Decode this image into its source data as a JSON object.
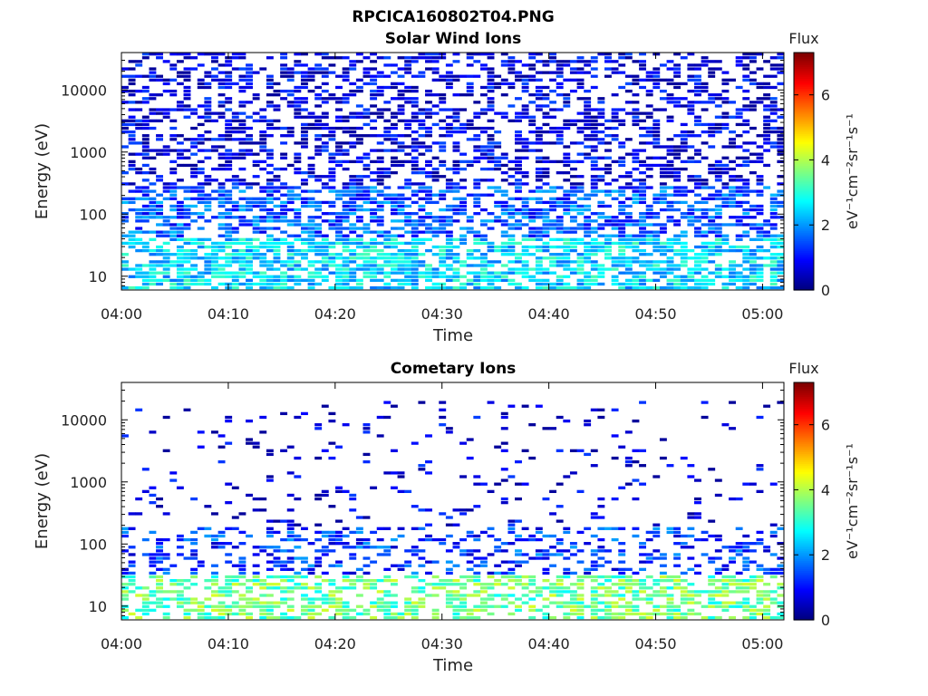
{
  "figure": {
    "title": "RPCICA160802T04.PNG"
  },
  "colorbar": {
    "label": "Flux",
    "unit_text": "eV⁻¹cm⁻²sr⁻¹s⁻¹",
    "ticks": [
      "0",
      "2",
      "4",
      "6"
    ],
    "range": [
      0,
      7.3
    ],
    "colormap": "jet"
  },
  "chart_data": [
    {
      "type": "heatmap",
      "title": "Solar Wind Ions",
      "xlabel": "Time",
      "ylabel": "Energy (eV)",
      "x_ticks": [
        "04:00",
        "04:10",
        "04:20",
        "04:30",
        "04:40",
        "04:50",
        "05:00"
      ],
      "x_range": [
        "04:00",
        "05:02"
      ],
      "y_ticks": [
        "10",
        "100",
        "1000",
        "10000"
      ],
      "y_scale": "log",
      "y_range": [
        6,
        40000
      ],
      "z_range": [
        0,
        7.3
      ],
      "description_bands": [
        {
          "energy_range": [
            6,
            40
          ],
          "flux_typical": 2.5
        },
        {
          "energy_range": [
            40,
            300
          ],
          "flux_typical": 1.5
        },
        {
          "energy_range": [
            300,
            40000
          ],
          "flux_typical": 0.7
        }
      ]
    },
    {
      "type": "heatmap",
      "title": "Cometary Ions",
      "xlabel": "Time",
      "ylabel": "Energy (eV)",
      "x_ticks": [
        "04:00",
        "04:10",
        "04:20",
        "04:30",
        "04:40",
        "04:50",
        "05:00"
      ],
      "x_range": [
        "04:00",
        "05:02"
      ],
      "y_ticks": [
        "10",
        "100",
        "1000",
        "10000"
      ],
      "y_scale": "log",
      "y_range": [
        6,
        40000
      ],
      "z_range": [
        0,
        7.3
      ],
      "description_bands": [
        {
          "energy_range": [
            6,
            30
          ],
          "flux_typical": 3.5
        },
        {
          "energy_range": [
            30,
            200
          ],
          "flux_typical": 1.3
        },
        {
          "energy_range": [
            200,
            20000
          ],
          "flux_typical": 0.6
        }
      ]
    }
  ]
}
